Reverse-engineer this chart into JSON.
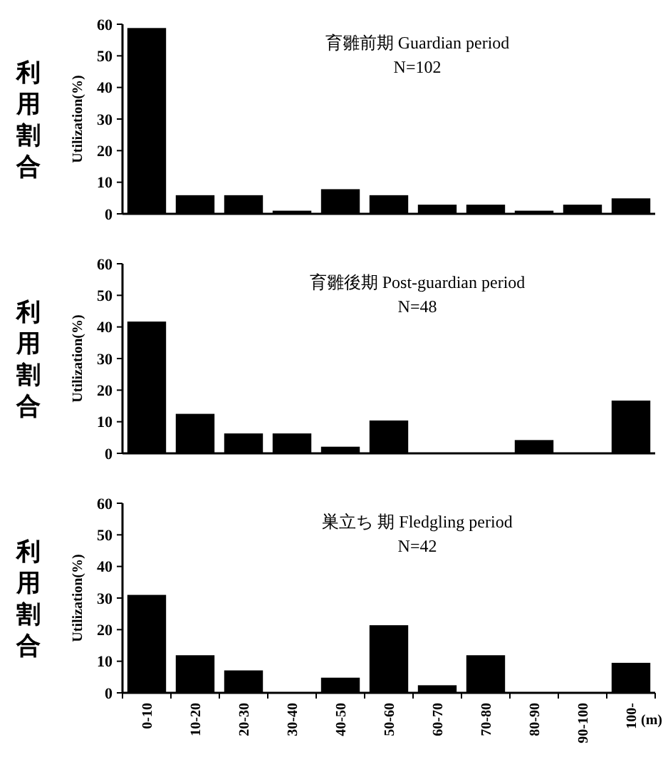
{
  "chart_data": [
    {
      "type": "bar",
      "title": "育雛前期 Guardian period",
      "subtitle": "N=102",
      "ylabel": "Utilization(%)",
      "annotations": [
        "利用割合"
      ],
      "categories": [
        null,
        null,
        null,
        null,
        null,
        null,
        null,
        null,
        null,
        null,
        null
      ],
      "values": [
        58.8,
        5.9,
        5.9,
        1.0,
        7.8,
        5.9,
        2.9,
        2.9,
        1.0,
        2.9,
        4.9
      ],
      "color": "#000000",
      "ylim": [
        0,
        60
      ],
      "yticks": [
        0,
        10,
        20,
        30,
        40,
        50,
        60
      ],
      "tick_labels": "y"
    },
    {
      "type": "bar",
      "title": "育雛後期 Post-guardian period",
      "subtitle": "N=48",
      "ylabel": "Utilization(%)",
      "annotations": [
        "利用割合"
      ],
      "categories": [
        null,
        null,
        null,
        null,
        null,
        null,
        null,
        null,
        null,
        null,
        null
      ],
      "values": [
        41.7,
        12.5,
        6.3,
        6.3,
        2.1,
        10.4,
        0,
        0,
        4.2,
        0,
        16.7
      ],
      "color": "#000000",
      "ylim": [
        0,
        60
      ],
      "yticks": [
        0,
        10,
        20,
        30,
        40,
        50,
        60
      ],
      "tick_labels": "y"
    },
    {
      "type": "bar",
      "title": "巣立ち 期 Fledgling period",
      "subtitle": "N=42",
      "ylabel": "Utilization(%)",
      "xlabel": "(m)",
      "annotations": [
        "利用割合"
      ],
      "categories": [
        "0-10",
        "10-20",
        "20-30",
        "30-40",
        "40-50",
        "50-60",
        "60-70",
        "70-80",
        "80-90",
        "90-100",
        "100-"
      ],
      "values": [
        31.0,
        11.9,
        7.1,
        0,
        4.8,
        21.4,
        2.4,
        11.9,
        0,
        0,
        9.5
      ],
      "color": "#000000",
      "ylim": [
        0,
        60
      ],
      "yticks": [
        0,
        10,
        20,
        30,
        40,
        50,
        60
      ]
    }
  ]
}
